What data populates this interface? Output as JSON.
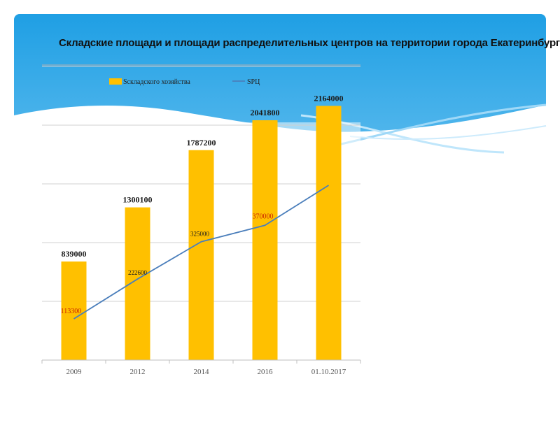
{
  "colors": {
    "sky_top": "#1f9fe4",
    "sky_bottom": "#8fd3f6",
    "bar": "#ffc000",
    "line": "#4a7ebb",
    "label_bar": "#1a1a1a",
    "label_line_red": "#cc2200",
    "label_line_dark": "#1a1a1a",
    "grid": "#d0d0d0"
  },
  "chart_data": {
    "type": "bar",
    "title": "Складские площади и площади распределительных центров на территории города Екатеринбурга",
    "categories": [
      "2009",
      "2012",
      "2014",
      "2016",
      "01.10.2017"
    ],
    "series": [
      {
        "name": "Sскладского хозяйства",
        "type": "bar",
        "values": [
          839000,
          1300100,
          1787200,
          2041800,
          2164000
        ]
      },
      {
        "name": "SРЦ",
        "type": "line",
        "values": [
          113300,
          222600,
          325000,
          370000,
          480000
        ]
      }
    ],
    "data_labels": {
      "bars": [
        "839000",
        "1300100",
        "1787200",
        "2041800",
        "2164000"
      ],
      "line": [
        "113300",
        "222600",
        "325000",
        "370000"
      ]
    },
    "ylim": [
      0,
      2500000
    ],
    "grid": true,
    "legend": "top-left"
  }
}
